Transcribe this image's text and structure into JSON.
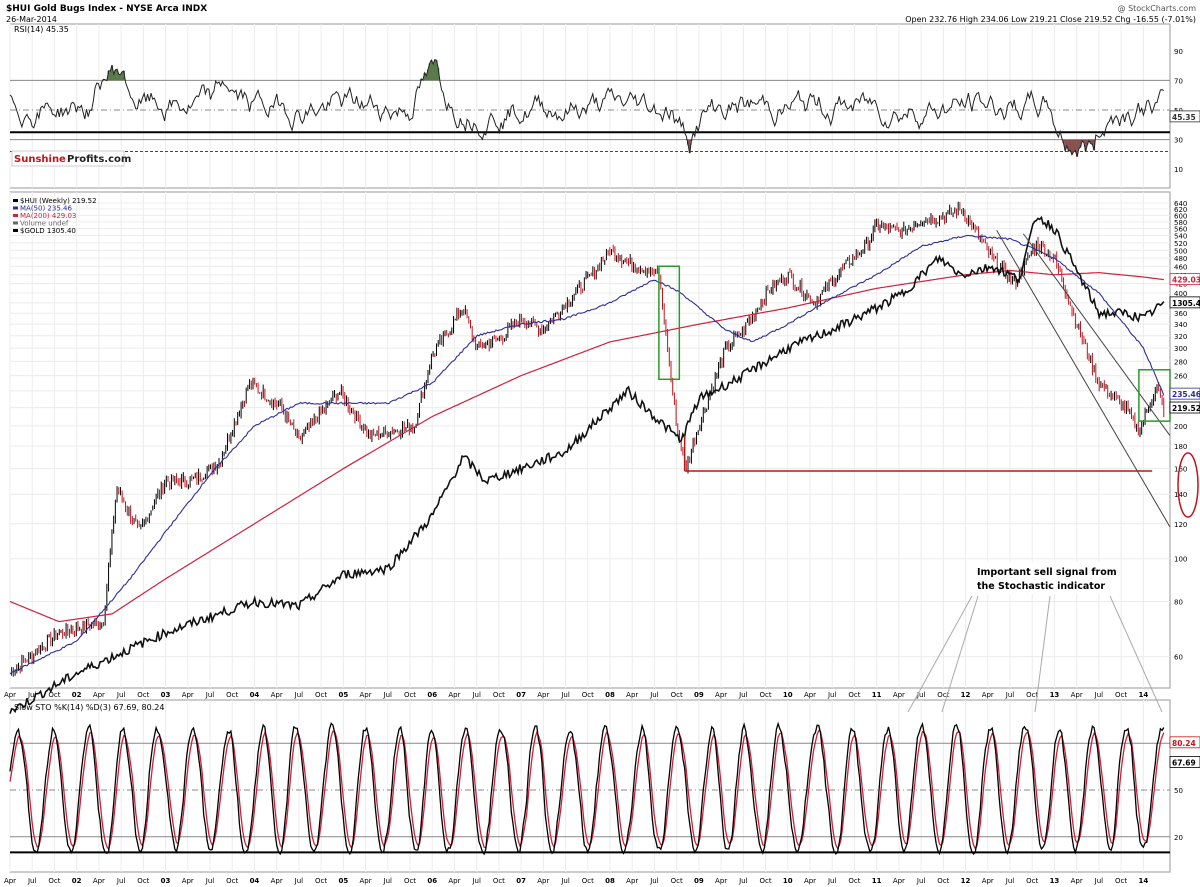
{
  "header": {
    "symbol_title": "$HUI Gold Bugs Index - NYSE Arca  INDX",
    "date": "26-Mar-2014",
    "copyright": "@ StockCharts.com",
    "ohlc": "Open 232.76  High 234.06  Low 219.21  Close 219.52  Chg -16.55 (-7.01%)"
  },
  "watermark": {
    "part1": "Sunshine",
    "part2": "Profits.com"
  },
  "annotation": {
    "line1": "Important sell signal from",
    "line2": "the Stochastic indicator"
  },
  "legend": {
    "rsi": "RSI(14) 45.35",
    "main": [
      {
        "text": "$HUI (Weekly) 219.52",
        "color": "#000000"
      },
      {
        "text": "MA(50) 235.46",
        "color": "#2d2d9a"
      },
      {
        "text": "MA(200) 429.03",
        "color": "#d0203a"
      },
      {
        "text": "Volume undef",
        "color": "#666666"
      },
      {
        "text": "$GOLD 1305.40",
        "color": "#000000"
      }
    ],
    "sto": "Slow STO %K(14) %D(3) 67.69, 80.24"
  },
  "right_labels": {
    "rsi_value": "45.35",
    "ma200": "429.03",
    "gold": "1305.40",
    "ma50": "235.46",
    "hui": "219.52",
    "sto_d": "80.24",
    "sto_k": "67.69"
  },
  "chart_data": [
    {
      "type": "line",
      "title": "RSI(14) 45.35",
      "ylim": [
        0,
        100
      ],
      "yticks": [
        10,
        30,
        50,
        70,
        90
      ],
      "reference_lines": {
        "upper": 70,
        "middle": 50,
        "lower": 30,
        "thick_support": 35,
        "dashed_red": 22
      },
      "series": [
        {
          "name": "RSI(14)",
          "last": 45.35
        }
      ]
    },
    {
      "type": "line",
      "title": "$HUI (Weekly) 219.52",
      "scale": "log",
      "yticks": [
        60,
        80,
        100,
        120,
        140,
        160,
        180,
        200,
        220,
        240,
        260,
        280,
        300,
        320,
        340,
        360,
        380,
        400,
        420,
        440,
        460,
        480,
        500,
        520,
        540,
        560,
        580,
        600,
        620,
        640
      ],
      "series": [
        {
          "name": "$HUI (Weekly)",
          "last": 219.52,
          "x": [
            2001.25,
            2001.8,
            2002.3,
            2002.45,
            2002.7,
            2003.0,
            2003.3,
            2003.6,
            2003.95,
            2004.3,
            2004.5,
            2004.95,
            2005.3,
            2005.8,
            2006.0,
            2006.35,
            2006.5,
            2006.8,
            2007.0,
            2007.25,
            2007.5,
            2007.8,
            2008.0,
            2008.2,
            2008.55,
            2008.75,
            2008.85,
            2009.0,
            2009.3,
            2009.5,
            2009.8,
            2010.0,
            2010.3,
            2010.6,
            2010.9,
            2011.0,
            2011.3,
            2011.5,
            2011.7,
            2011.95,
            2012.3,
            2012.55,
            2012.8,
            2013.0,
            2013.3,
            2013.5,
            2013.8,
            2013.95,
            2014.15,
            2014.23
          ],
          "y": [
            55,
            68,
            72,
            145,
            115,
            150,
            150,
            165,
            250,
            220,
            185,
            240,
            190,
            200,
            290,
            370,
            300,
            320,
            350,
            330,
            380,
            440,
            500,
            470,
            440,
            200,
            160,
            200,
            300,
            330,
            410,
            440,
            380,
            450,
            520,
            570,
            550,
            590,
            590,
            620,
            480,
            420,
            520,
            480,
            320,
            250,
            220,
            195,
            245,
            219.52
          ]
        },
        {
          "name": "MA(50)",
          "last": 235.46,
          "x": [
            2001.25,
            2002.0,
            2002.6,
            2003.0,
            2003.5,
            2004.0,
            2004.5,
            2005.0,
            2005.5,
            2006.0,
            2006.5,
            2007.0,
            2007.5,
            2008.0,
            2008.5,
            2008.8,
            2009.0,
            2009.3,
            2009.6,
            2010.0,
            2010.5,
            2011.0,
            2011.5,
            2012.0,
            2012.5,
            2012.8,
            2013.0,
            2013.5,
            2014.0,
            2014.23
          ],
          "y": [
            55,
            65,
            90,
            115,
            155,
            200,
            225,
            225,
            225,
            250,
            320,
            340,
            350,
            380,
            430,
            400,
            370,
            330,
            310,
            340,
            390,
            440,
            510,
            540,
            530,
            500,
            480,
            400,
            300,
            235.46
          ]
        },
        {
          "name": "MA(200)",
          "last": 429.03,
          "x": [
            2001.25,
            2001.8,
            2002.4,
            2003.0,
            2004.0,
            2005.0,
            2006.0,
            2007.0,
            2008.0,
            2009.0,
            2010.0,
            2011.0,
            2012.0,
            2012.5,
            2013.0,
            2013.5,
            2014.0,
            2014.23
          ],
          "y": [
            80,
            72,
            75,
            90,
            120,
            160,
            210,
            260,
            310,
            340,
            370,
            410,
            440,
            450,
            440,
            445,
            435,
            429.03
          ]
        },
        {
          "name": "$GOLD",
          "last": 1305.4,
          "x": [
            2001.25,
            2002.0,
            2003.0,
            2004.0,
            2004.5,
            2005.0,
            2005.5,
            2006.0,
            2006.35,
            2006.6,
            2007.0,
            2007.5,
            2008.0,
            2008.2,
            2008.5,
            2008.8,
            2009.0,
            2009.5,
            2010.0,
            2010.5,
            2011.0,
            2011.3,
            2011.7,
            2011.95,
            2012.3,
            2012.6,
            2012.8,
            2013.0,
            2013.3,
            2013.5,
            2013.8,
            2014.0,
            2014.23
          ],
          "y": [
            45,
            55,
            68,
            80,
            78,
            92,
            95,
            125,
            170,
            150,
            160,
            175,
            220,
            240,
            210,
            185,
            230,
            260,
            300,
            330,
            370,
            400,
            480,
            440,
            460,
            430,
            600,
            560,
            430,
            360,
            360,
            350,
            380
          ]
        }
      ]
    },
    {
      "type": "line",
      "title": "Slow STO %K(14) %D(3) 67.69, 80.24",
      "ylim": [
        0,
        100
      ],
      "yticks": [
        20,
        50,
        80
      ],
      "reference_lines": {
        "upper": 80,
        "middle": 50,
        "lower": 20,
        "thick_bottom": 10
      },
      "series": [
        {
          "name": "%K(14)",
          "last": 67.69,
          "color": "#000000"
        },
        {
          "name": "%D(3)",
          "last": 80.24,
          "color": "#d0203a"
        }
      ]
    }
  ],
  "x_axis": {
    "labels": [
      "Apr",
      "Jul",
      "Oct",
      "02",
      "Apr",
      "Jul",
      "Oct",
      "03",
      "Apr",
      "Jul",
      "Oct",
      "04",
      "Apr",
      "Jul",
      "Oct",
      "05",
      "Apr",
      "Jul",
      "Oct",
      "06",
      "Apr",
      "Jul",
      "Oct",
      "07",
      "Apr",
      "Jul",
      "Oct",
      "08",
      "Apr",
      "Jul",
      "Oct",
      "09",
      "Apr",
      "Jul",
      "Oct",
      "10",
      "Apr",
      "Jul",
      "Oct",
      "11",
      "Apr",
      "Jul",
      "Oct",
      "12",
      "Apr",
      "Jul",
      "Oct",
      "13",
      "Apr",
      "Jul",
      "Oct",
      "14"
    ]
  },
  "colors": {
    "hui": "#000000",
    "ma50": "#2d2d9a",
    "ma200": "#d0203a",
    "gold": "#111111",
    "green_box": "#2a9a2a",
    "red_line": "#b01818",
    "rsi_fill": "#5a7a4a",
    "rsi_low_fill": "#8a5050"
  }
}
